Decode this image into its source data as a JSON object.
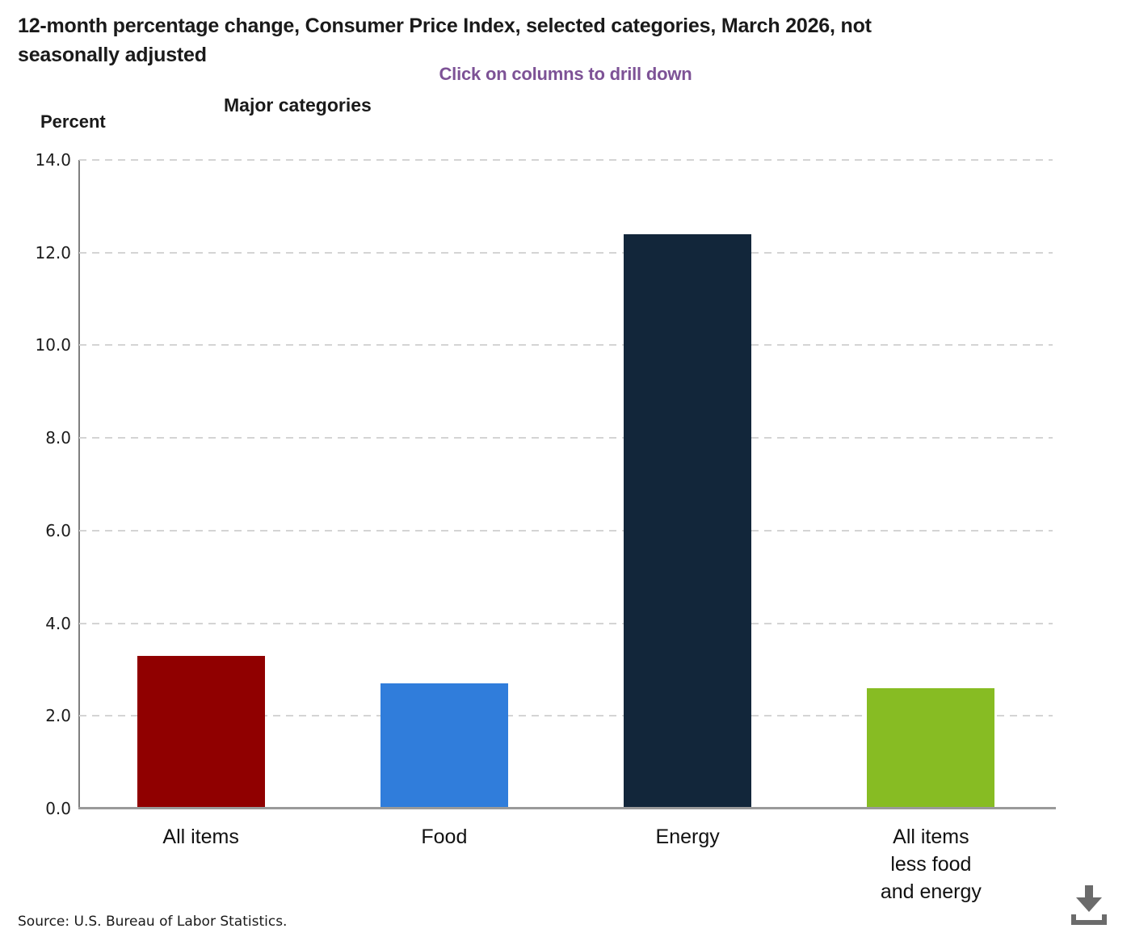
{
  "header": {
    "title_line1": "12-month percentage change, Consumer Price Index, selected categories, March 2026, not",
    "title_line2": "seasonally adjusted",
    "subtitle": "Click on columns to drill down"
  },
  "chart_data": {
    "type": "bar",
    "title": "12-month percentage change, Consumer Price Index, selected categories, March 2026, not seasonally adjusted",
    "group_label": "Major categories",
    "ylabel": "Percent",
    "xlabel": "",
    "categories": [
      "All items",
      "Food",
      "Energy",
      "All items less food and energy"
    ],
    "category_lines": [
      [
        "All items"
      ],
      [
        "Food"
      ],
      [
        "Energy"
      ],
      [
        "All items",
        "less food",
        "and energy"
      ]
    ],
    "values": [
      3.3,
      2.7,
      12.4,
      2.6
    ],
    "colors": [
      "#900000",
      "#307ddb",
      "#12263a",
      "#87bc23"
    ],
    "ylim": [
      0,
      14
    ],
    "yticks": [
      "14.0",
      "12.0",
      "10.0",
      "8.0",
      "6.0",
      "4.0",
      "2.0",
      "0.0"
    ],
    "grid": "horizontal-dashed",
    "legend": "none"
  },
  "footer": {
    "source": "Source: U.S. Bureau of Labor Statistics."
  },
  "colors": {
    "subtitle": "#7d5296",
    "axis_line": "#7f7f7f",
    "gridline": "#d4d4d4",
    "download_icon": "#6b6b6b"
  }
}
